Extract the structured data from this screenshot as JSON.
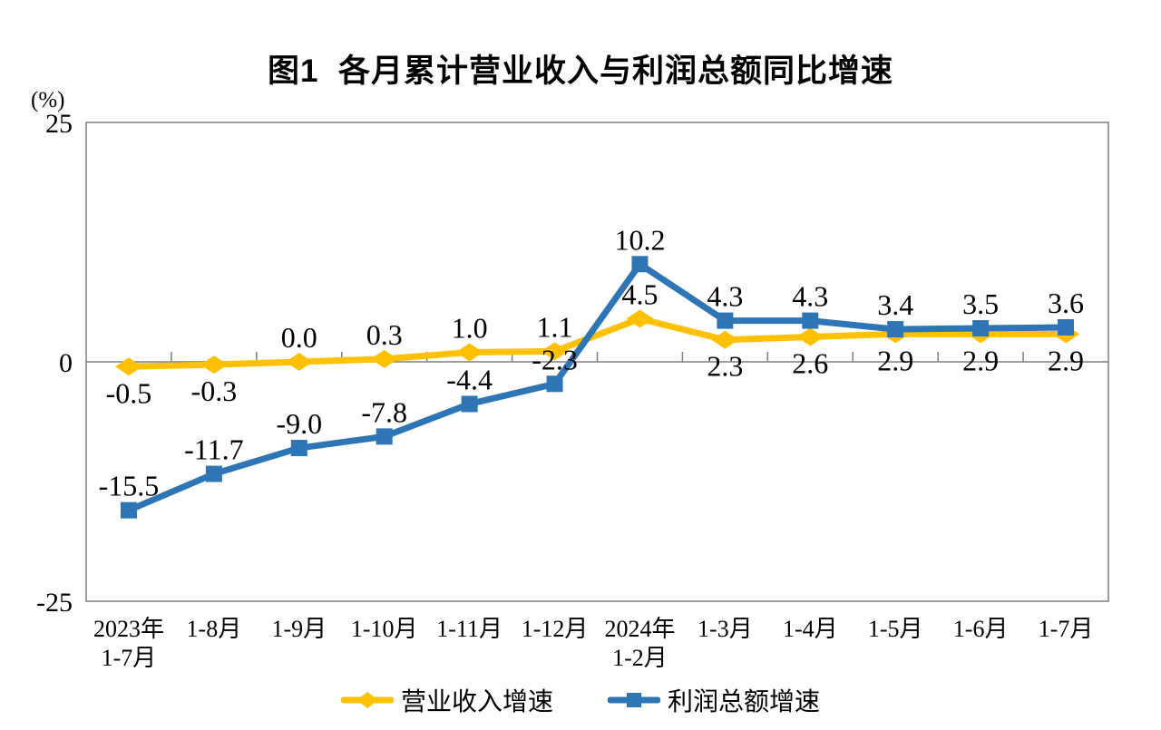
{
  "chart_data": {
    "type": "line",
    "title": "图1  各月累计营业收入与利润总额同比增速",
    "unit_label": "(%)",
    "ylim": [
      -25,
      25
    ],
    "y_ticks": [
      25,
      0,
      -25
    ],
    "grid": false,
    "legend_position": "bottom",
    "axis_color": "#7f7f7f",
    "label_color": "#000000",
    "categories": [
      [
        "2023年",
        "1-7月"
      ],
      [
        "1-8月"
      ],
      [
        "1-9月"
      ],
      [
        "1-10月"
      ],
      [
        "1-11月"
      ],
      [
        "1-12月"
      ],
      [
        "2024年",
        "1-2月"
      ],
      [
        "1-3月"
      ],
      [
        "1-4月"
      ],
      [
        "1-5月"
      ],
      [
        "1-6月"
      ],
      [
        "1-7月"
      ]
    ],
    "series": [
      {
        "name": "营业收入增速",
        "color": "#FFC000",
        "marker": "diamond",
        "values": [
          -0.5,
          -0.3,
          0.0,
          0.3,
          1.0,
          1.1,
          4.5,
          2.3,
          2.6,
          2.9,
          2.9,
          2.9
        ],
        "label_side": [
          "below",
          "below",
          "above",
          "above",
          "above",
          "above",
          "above",
          "below",
          "below",
          "below",
          "below",
          "below"
        ]
      },
      {
        "name": "利润总额增速",
        "color": "#2E75B6",
        "marker": "square",
        "values": [
          -15.5,
          -11.7,
          -9.0,
          -7.8,
          -4.4,
          -2.3,
          10.2,
          4.3,
          4.3,
          3.4,
          3.5,
          3.6
        ],
        "label_side": [
          "above",
          "above",
          "above",
          "above",
          "above",
          "above",
          "above",
          "above",
          "above",
          "above",
          "above",
          "above"
        ]
      }
    ]
  }
}
